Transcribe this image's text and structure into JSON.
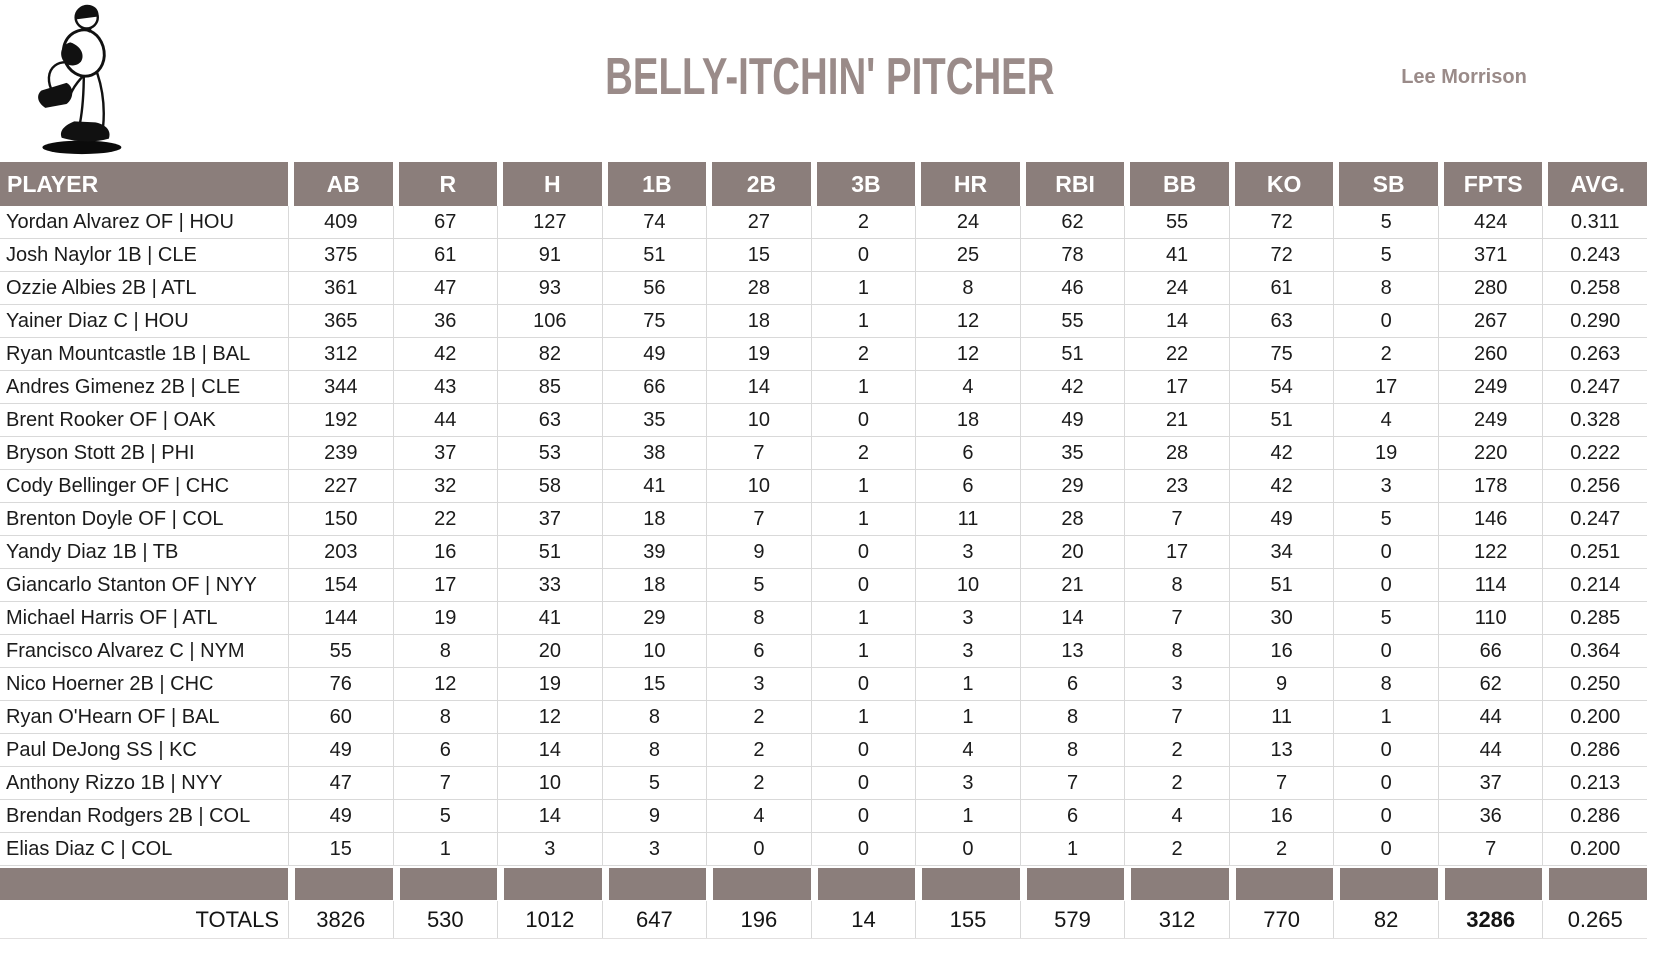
{
  "header": {
    "title": "BELLY-ITCHIN' PITCHER",
    "owner": "Lee Morrison",
    "logo": "baseball-pitcher-windup-clipart"
  },
  "colors": {
    "taupe_band": "#8b7e7b",
    "title_text": "#9a8b89",
    "grid_line": "#d9d9d9",
    "header_text": "#ffffff",
    "body_text": "#1b1b1b"
  },
  "table": {
    "columns": [
      "PLAYER",
      "AB",
      "R",
      "H",
      "1B",
      "2B",
      "3B",
      "HR",
      "RBI",
      "BB",
      "KO",
      "SB",
      "FPTS",
      "AVG."
    ],
    "rows": [
      {
        "player": "Yordan Alvarez OF | HOU",
        "stats": [
          "409",
          "67",
          "127",
          "74",
          "27",
          "2",
          "24",
          "62",
          "55",
          "72",
          "5",
          "424",
          "0.311"
        ]
      },
      {
        "player": "Josh Naylor 1B | CLE",
        "stats": [
          "375",
          "61",
          "91",
          "51",
          "15",
          "0",
          "25",
          "78",
          "41",
          "72",
          "5",
          "371",
          "0.243"
        ]
      },
      {
        "player": "Ozzie Albies 2B | ATL",
        "stats": [
          "361",
          "47",
          "93",
          "56",
          "28",
          "1",
          "8",
          "46",
          "24",
          "61",
          "8",
          "280",
          "0.258"
        ]
      },
      {
        "player": "Yainer Diaz C | HOU",
        "stats": [
          "365",
          "36",
          "106",
          "75",
          "18",
          "1",
          "12",
          "55",
          "14",
          "63",
          "0",
          "267",
          "0.290"
        ]
      },
      {
        "player": "Ryan Mountcastle 1B | BAL",
        "stats": [
          "312",
          "42",
          "82",
          "49",
          "19",
          "2",
          "12",
          "51",
          "22",
          "75",
          "2",
          "260",
          "0.263"
        ]
      },
      {
        "player": "Andres Gimenez 2B | CLE",
        "stats": [
          "344",
          "43",
          "85",
          "66",
          "14",
          "1",
          "4",
          "42",
          "17",
          "54",
          "17",
          "249",
          "0.247"
        ]
      },
      {
        "player": "Brent Rooker OF | OAK",
        "stats": [
          "192",
          "44",
          "63",
          "35",
          "10",
          "0",
          "18",
          "49",
          "21",
          "51",
          "4",
          "249",
          "0.328"
        ]
      },
      {
        "player": "Bryson Stott 2B | PHI",
        "stats": [
          "239",
          "37",
          "53",
          "38",
          "7",
          "2",
          "6",
          "35",
          "28",
          "42",
          "19",
          "220",
          "0.222"
        ]
      },
      {
        "player": "Cody Bellinger OF | CHC",
        "stats": [
          "227",
          "32",
          "58",
          "41",
          "10",
          "1",
          "6",
          "29",
          "23",
          "42",
          "3",
          "178",
          "0.256"
        ]
      },
      {
        "player": "Brenton Doyle OF | COL",
        "stats": [
          "150",
          "22",
          "37",
          "18",
          "7",
          "1",
          "11",
          "28",
          "7",
          "49",
          "5",
          "146",
          "0.247"
        ]
      },
      {
        "player": "Yandy Diaz 1B | TB",
        "stats": [
          "203",
          "16",
          "51",
          "39",
          "9",
          "0",
          "3",
          "20",
          "17",
          "34",
          "0",
          "122",
          "0.251"
        ]
      },
      {
        "player": "Giancarlo Stanton OF | NYY",
        "stats": [
          "154",
          "17",
          "33",
          "18",
          "5",
          "0",
          "10",
          "21",
          "8",
          "51",
          "0",
          "114",
          "0.214"
        ]
      },
      {
        "player": "Michael Harris OF | ATL",
        "stats": [
          "144",
          "19",
          "41",
          "29",
          "8",
          "1",
          "3",
          "14",
          "7",
          "30",
          "5",
          "110",
          "0.285"
        ]
      },
      {
        "player": "Francisco Alvarez C | NYM",
        "stats": [
          "55",
          "8",
          "20",
          "10",
          "6",
          "1",
          "3",
          "13",
          "8",
          "16",
          "0",
          "66",
          "0.364"
        ]
      },
      {
        "player": "Nico Hoerner 2B | CHC",
        "stats": [
          "76",
          "12",
          "19",
          "15",
          "3",
          "0",
          "1",
          "6",
          "3",
          "9",
          "8",
          "62",
          "0.250"
        ]
      },
      {
        "player": "Ryan O'Hearn OF | BAL",
        "stats": [
          "60",
          "8",
          "12",
          "8",
          "2",
          "1",
          "1",
          "8",
          "7",
          "11",
          "1",
          "44",
          "0.200"
        ]
      },
      {
        "player": "Paul DeJong SS | KC",
        "stats": [
          "49",
          "6",
          "14",
          "8",
          "2",
          "0",
          "4",
          "8",
          "2",
          "13",
          "0",
          "44",
          "0.286"
        ]
      },
      {
        "player": "Anthony Rizzo 1B | NYY",
        "stats": [
          "47",
          "7",
          "10",
          "5",
          "2",
          "0",
          "3",
          "7",
          "2",
          "7",
          "0",
          "37",
          "0.213"
        ]
      },
      {
        "player": "Brendan Rodgers 2B | COL",
        "stats": [
          "49",
          "5",
          "14",
          "9",
          "4",
          "0",
          "1",
          "6",
          "4",
          "16",
          "0",
          "36",
          "0.286"
        ]
      },
      {
        "player": "Elias Diaz C | COL",
        "stats": [
          "15",
          "1",
          "3",
          "3",
          "0",
          "0",
          "0",
          "1",
          "2",
          "2",
          "0",
          "7",
          "0.200"
        ]
      }
    ],
    "totals_label": "TOTALS",
    "totals": [
      "3826",
      "530",
      "1012",
      "647",
      "196",
      "14",
      "155",
      "579",
      "312",
      "770",
      "82",
      "3286",
      "0.265"
    ],
    "totals_bold_column": "FPTS"
  }
}
